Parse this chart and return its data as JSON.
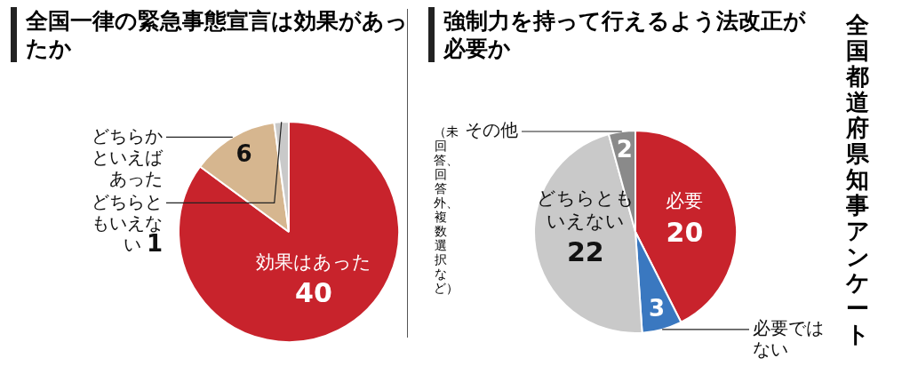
{
  "chart_data": [
    {
      "type": "pie",
      "title": "全国一律の緊急事態宣言は効果があったか",
      "categories": [
        "効果はあった",
        "どちらかといえばあった",
        "どちらともいえない"
      ],
      "values": [
        40,
        6,
        1
      ],
      "colors": [
        "#c8232c",
        "#d6b68f",
        "#c9c9c9"
      ],
      "data_labels": true,
      "legend": false
    },
    {
      "type": "pie",
      "title": "強制力を持って行えるよう法改正が必要か",
      "categories": [
        "必要",
        "必要ではない",
        "どちらともいえない",
        "その他"
      ],
      "values": [
        20,
        3,
        22,
        2
      ],
      "colors": [
        "#c8232c",
        "#3a78c0",
        "#c9c9c9",
        "#8a8a8a"
      ],
      "data_labels": true,
      "legend": false,
      "annotations": [
        "（未回答、回答外、複数選択など）",
        "全国都道府県知事アンケート"
      ]
    }
  ]
}
